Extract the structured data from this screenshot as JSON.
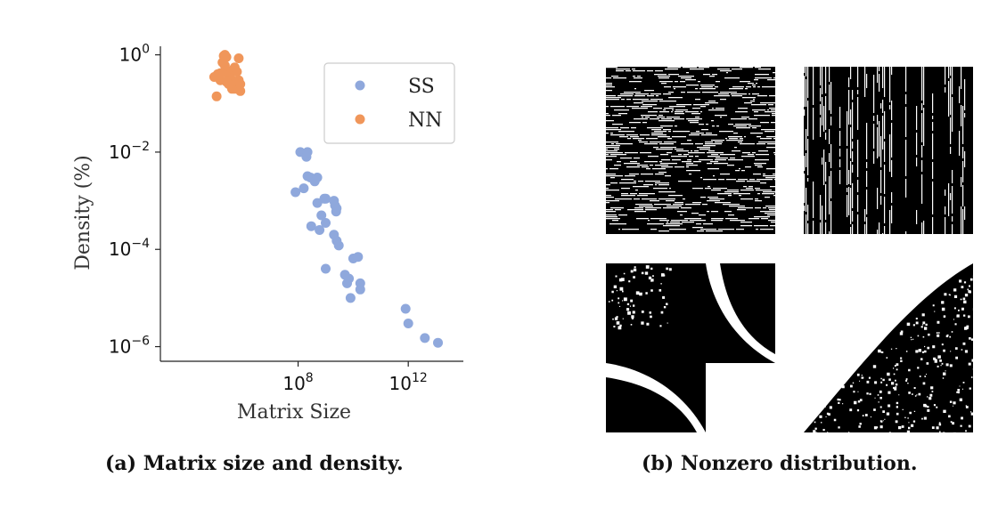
{
  "chart_data": {
    "type": "scatter",
    "xscale": "log",
    "yscale": "log",
    "xlabel": "Matrix Size",
    "ylabel": "Density (%)",
    "xlim": [
      1000,
      100000000000000
    ],
    "ylim": [
      5e-07,
      1.5
    ],
    "xticks": [
      {
        "value": 100000000,
        "base": "10",
        "exp": "8"
      },
      {
        "value": 1000000000000,
        "base": "10",
        "exp": "12"
      }
    ],
    "yticks": [
      {
        "value": 1,
        "base": "10",
        "exp": "0"
      },
      {
        "value": 0.01,
        "base": "10",
        "exp": "−2"
      },
      {
        "value": 0.0001,
        "base": "10",
        "exp": "−4"
      },
      {
        "value": 1e-06,
        "base": "10",
        "exp": "−6"
      }
    ],
    "legend_position": "top-right",
    "series": [
      {
        "name": "SS",
        "color": "#8FA8DC",
        "points": [
          [
            120000000.0,
            0.01
          ],
          [
            200000000.0,
            0.008
          ],
          [
            220000000.0,
            0.01
          ],
          [
            220000000.0,
            0.0032
          ],
          [
            280000000.0,
            0.003
          ],
          [
            400000000.0,
            0.0025
          ],
          [
            500000000.0,
            0.003
          ],
          [
            80000000.0,
            0.0015
          ],
          [
            160000000.0,
            0.0018
          ],
          [
            500000000.0,
            0.0009
          ],
          [
            700000000.0,
            0.0005
          ],
          [
            900000000.0,
            0.0011
          ],
          [
            1000000000.0,
            0.0011
          ],
          [
            2000000000.0,
            0.001
          ],
          [
            2200000000.0,
            0.0008
          ],
          [
            2500000000.0,
            0.0007
          ],
          [
            2400000000.0,
            0.0006
          ],
          [
            300000000.0,
            0.0003
          ],
          [
            600000000.0,
            0.00025
          ],
          [
            1000000000.0,
            0.00035
          ],
          [
            2000000000.0,
            0.0002
          ],
          [
            2500000000.0,
            0.00015
          ],
          [
            3000000000.0,
            0.00012
          ],
          [
            1000000000.0,
            4e-05
          ],
          [
            5000000000.0,
            3e-05
          ],
          [
            7000000000.0,
            2.5e-05
          ],
          [
            6000000000.0,
            2e-05
          ],
          [
            10000000000.0,
            6.5e-05
          ],
          [
            15000000000.0,
            7e-05
          ],
          [
            18000000000.0,
            2e-05
          ],
          [
            18000000000.0,
            1.5e-05
          ],
          [
            8000000000.0,
            1e-05
          ],
          [
            800000000000.0,
            6e-06
          ],
          [
            1000000000000.0,
            3e-06
          ],
          [
            4000000000000.0,
            1.5e-06
          ],
          [
            12000000000000.0,
            1.2e-06
          ]
        ]
      },
      {
        "name": "NN",
        "color": "#F0965A",
        "points": [
          [
            90000.0,
            0.35
          ],
          [
            120000.0,
            0.4
          ],
          [
            150000.0,
            0.3
          ],
          [
            180000.0,
            0.7
          ],
          [
            200000.0,
            0.95
          ],
          [
            220000.0,
            1.0
          ],
          [
            250000.0,
            0.9
          ],
          [
            220000.0,
            0.6
          ],
          [
            280000.0,
            0.45
          ],
          [
            300000.0,
            0.35
          ],
          [
            350000.0,
            0.4
          ],
          [
            400000.0,
            0.3
          ],
          [
            450000.0,
            0.5
          ],
          [
            500000.0,
            0.55
          ],
          [
            600000.0,
            0.45
          ],
          [
            400000.0,
            0.2
          ],
          [
            500000.0,
            0.2
          ],
          [
            600000.0,
            0.28
          ],
          [
            700000.0,
            0.85
          ],
          [
            700000.0,
            0.3
          ],
          [
            800000.0,
            0.25
          ],
          [
            800000.0,
            0.18
          ],
          [
            300000.0,
            0.25
          ],
          [
            110000.0,
            0.14
          ],
          [
            250000.0,
            0.28
          ],
          [
            150000.0,
            0.42
          ]
        ]
      }
    ]
  },
  "captions": {
    "a": "(a) Matrix size and density.",
    "b": "(b) Nonzero distribution."
  }
}
